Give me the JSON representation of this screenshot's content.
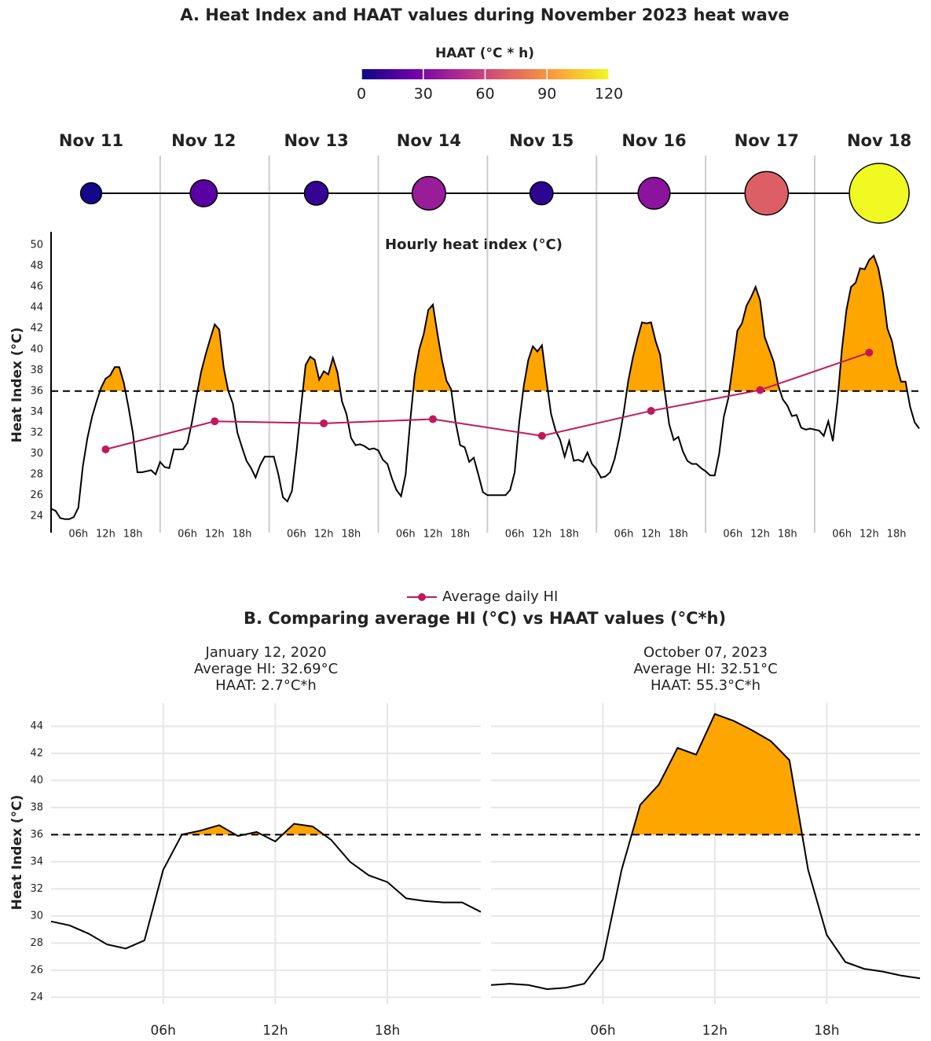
{
  "chart_data": [
    {
      "type": "timeline",
      "title": "A. Heat Index and HAAT values during November 2023 heat wave",
      "legend_title": "HAAT (°C * h)",
      "colorbar": {
        "lim": [
          0,
          120
        ],
        "ticks": [
          0,
          30,
          60,
          90,
          120
        ],
        "colors": [
          "#0d0887",
          "#6a00a8",
          "#b12a90",
          "#e16462",
          "#fca636",
          "#f0f921"
        ]
      },
      "categories": [
        "Nov 11",
        "Nov 12",
        "Nov 13",
        "Nov 14",
        "Nov 15",
        "Nov 16",
        "Nov 17",
        "Nov 18"
      ],
      "haat": [
        2,
        20,
        10,
        40,
        8,
        35,
        70,
        120
      ],
      "subtitle": "Hourly heat index (°C)",
      "ylabel": "Heat Index (°C)",
      "ylim": [
        22.4,
        51.3
      ],
      "yticks": [
        24,
        26,
        28,
        30,
        32,
        34,
        36,
        38,
        40,
        42,
        44,
        46,
        48,
        50
      ],
      "xticks": [
        {
          "value": 6,
          "label": "06h"
        },
        {
          "value": 12,
          "label": "12h"
        },
        {
          "value": 18,
          "label": "18h"
        }
      ],
      "threshold": 36,
      "line_color": "#000000",
      "fill_color": "#ffa500",
      "hourly": [
        [
          24.7,
          24.5,
          23.8,
          23.7,
          23.7,
          23.9,
          24.8,
          28.8,
          31.5,
          33.5,
          35.0,
          36.3,
          37.2,
          37.5,
          38.3,
          38.3,
          36.8,
          34.5,
          32.0,
          28.2,
          28.2,
          28.3,
          28.4,
          28.0
        ],
        [
          29.2,
          28.7,
          28.6,
          30.4,
          30.4,
          30.4,
          31.0,
          33.0,
          35.5,
          37.8,
          39.5,
          41.0,
          42.4,
          41.9,
          38.2,
          36.0,
          34.8,
          32.0,
          30.6,
          29.3,
          28.6,
          27.7,
          28.9,
          29.7
        ],
        [
          29.7,
          29.7,
          28.0,
          25.8,
          25.4,
          26.4,
          30.2,
          34.5,
          38.5,
          39.3,
          39.0,
          37.1,
          37.9,
          37.6,
          39.2,
          37.8,
          35.0,
          33.8,
          31.5,
          30.8,
          30.9,
          30.7,
          30.4,
          30.5
        ],
        [
          30.3,
          29.4,
          29.0,
          27.6,
          26.5,
          25.9,
          28.0,
          33.0,
          37.5,
          40.0,
          41.5,
          43.8,
          44.3,
          41.5,
          39.0,
          37.0,
          36.2,
          33.0,
          30.8,
          30.6,
          29.2,
          29.6,
          28.0,
          26.3
        ],
        [
          26.0,
          26.0,
          26.0,
          26.0,
          26.0,
          26.5,
          28.2,
          33.0,
          36.5,
          39.0,
          40.3,
          39.8,
          40.4,
          37.0,
          33.8,
          32.2,
          31.3,
          29.7,
          31.2,
          29.3,
          29.4,
          29.2,
          30.1,
          29.0
        ],
        [
          28.5,
          27.7,
          27.8,
          28.2,
          29.5,
          31.5,
          34.0,
          37.0,
          39.2,
          41.0,
          42.6,
          42.5,
          42.6,
          40.8,
          39.5,
          36.0,
          32.8,
          31.3,
          31.6,
          30.2,
          29.3,
          29.0,
          29.0,
          28.6
        ],
        [
          28.3,
          27.9,
          27.9,
          30.0,
          33.5,
          35.3,
          38.5,
          41.8,
          42.5,
          44.2,
          45.0,
          46.0,
          44.7,
          41.2,
          40.0,
          38.8,
          36.5,
          35.2,
          34.6,
          33.6,
          33.7,
          32.5,
          32.3,
          32.4
        ],
        [
          32.3,
          32.2,
          31.7,
          33.1,
          31.2,
          35.0,
          40.0,
          43.8,
          46.0,
          46.4,
          47.8,
          47.7,
          48.6,
          49.0,
          47.8,
          45.5,
          42.0,
          40.8,
          38.5,
          36.9,
          36.9,
          34.5,
          33.0,
          32.4
        ]
      ],
      "series": [
        {
          "name": "Average daily HI",
          "color": "#c2185b",
          "values": [
            30.4,
            33.1,
            32.9,
            33.3,
            31.7,
            34.1,
            36.1,
            39.7
          ]
        }
      ]
    },
    {
      "type": "line",
      "title": "B. Comparing average HI (°C) vs HAAT values (°C*h)",
      "subtitle": [
        "January 12, 2020",
        "Average HI: 32.69°C",
        "HAAT:  2.7°C*h"
      ],
      "ylabel": "Heat Index (°C)",
      "xlim": [
        0,
        23
      ],
      "xticks": [
        {
          "value": 6,
          "label": "06h"
        },
        {
          "value": 12,
          "label": "12h"
        },
        {
          "value": 18,
          "label": "18h"
        }
      ],
      "ylim": [
        23.5,
        45.7
      ],
      "yticks": [
        24,
        26,
        28,
        30,
        32,
        34,
        36,
        38,
        40,
        42,
        44
      ],
      "grid": true,
      "threshold": 36,
      "color": "#000000",
      "fill_color": "#ffa500",
      "x": [
        0,
        1,
        2,
        3,
        4,
        5,
        6,
        7,
        8,
        9,
        10,
        11,
        12,
        13,
        14,
        15,
        16,
        17,
        18,
        19,
        20,
        21,
        22,
        23
      ],
      "values": [
        29.6,
        29.3,
        28.7,
        27.9,
        27.6,
        28.2,
        33.4,
        36.0,
        36.3,
        36.7,
        35.9,
        36.2,
        35.5,
        36.8,
        36.6,
        35.6,
        34.0,
        33.0,
        32.5,
        31.3,
        31.1,
        31.0,
        31.0,
        30.3
      ]
    },
    {
      "type": "line",
      "subtitle": [
        "October 07, 2023",
        "Average HI: 32.51°C",
        "HAAT: 55.3°C*h"
      ],
      "xlim": [
        0,
        23
      ],
      "xticks": [
        {
          "value": 6,
          "label": "06h"
        },
        {
          "value": 12,
          "label": "12h"
        },
        {
          "value": 18,
          "label": "18h"
        }
      ],
      "grid": true,
      "threshold": 36,
      "color": "#000000",
      "fill_color": "#ffa500",
      "x": [
        0,
        1,
        2,
        3,
        4,
        5,
        6,
        7,
        8,
        9,
        10,
        11,
        12,
        13,
        14,
        15,
        16,
        17,
        18,
        19,
        20,
        21,
        22,
        23
      ],
      "values": [
        24.9,
        25.0,
        24.9,
        24.6,
        24.7,
        25.0,
        26.8,
        33.4,
        38.2,
        39.7,
        42.4,
        41.9,
        44.9,
        44.4,
        43.7,
        42.9,
        41.5,
        33.4,
        28.6,
        26.6,
        26.1,
        25.9,
        25.6,
        25.4
      ]
    }
  ]
}
